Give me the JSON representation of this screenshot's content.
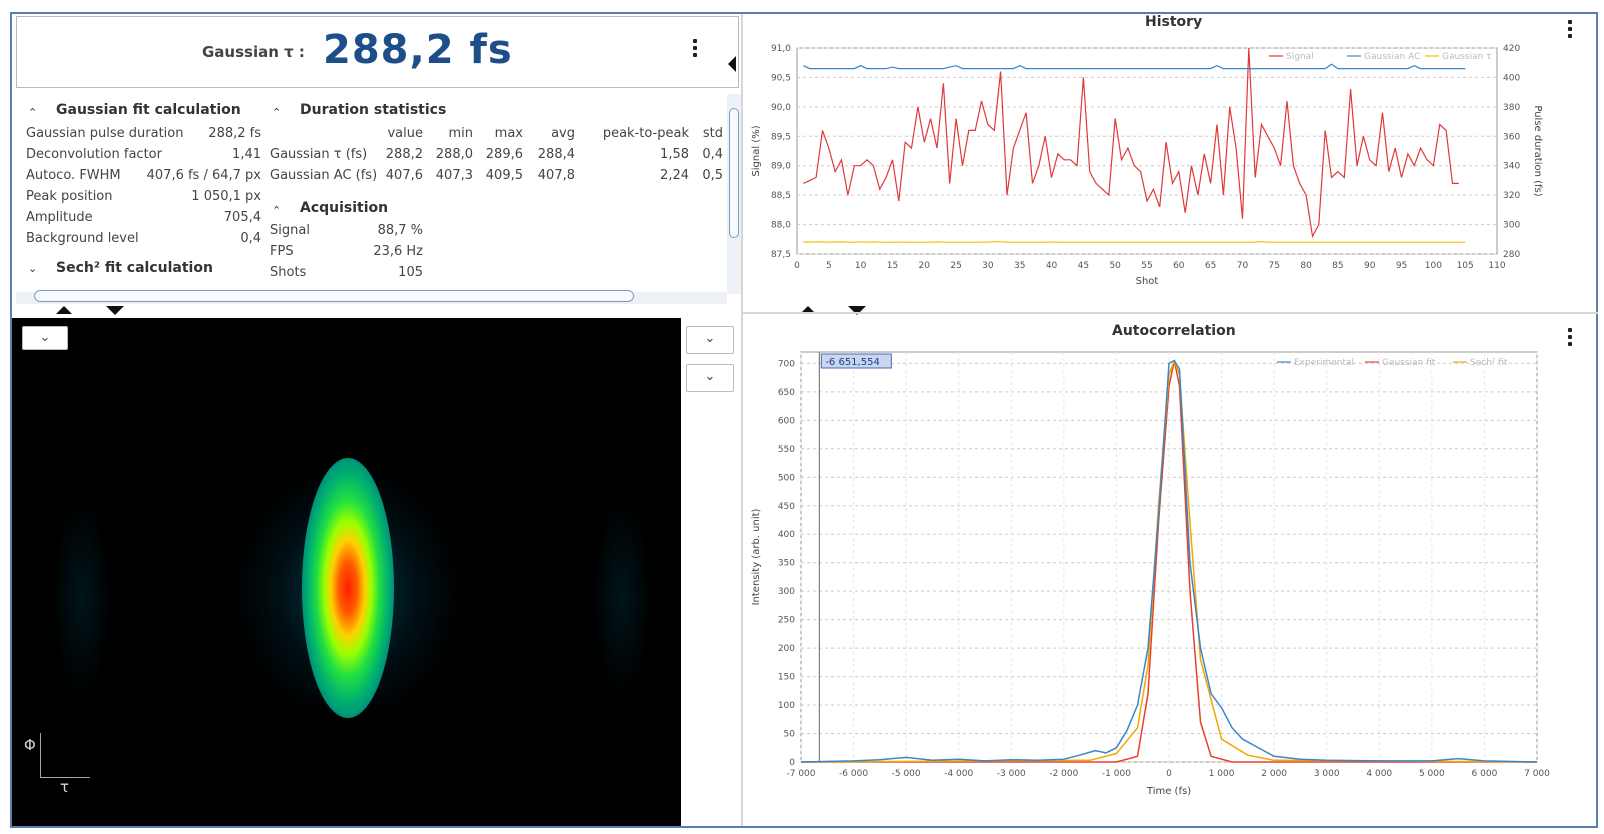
{
  "header": {
    "label": "Gaussian τ :",
    "value": "288,2 fs"
  },
  "gaussian_fit": {
    "title": "Gaussian fit calculation",
    "rows": [
      {
        "label": "Gaussian pulse duration",
        "value": "288,2 fs"
      },
      {
        "label": "Deconvolution factor",
        "value": "1,41"
      },
      {
        "label": "Autoco. FWHM",
        "value": "407,6 fs / 64,7 px"
      },
      {
        "label": "Peak position",
        "value": "1 050,1 px"
      },
      {
        "label": "Amplitude",
        "value": "705,4"
      },
      {
        "label": "Background level",
        "value": "0,4"
      }
    ]
  },
  "sech_fit": {
    "title": "Sech² fit calculation"
  },
  "duration_stats": {
    "title": "Duration statistics",
    "columns": [
      "value",
      "min",
      "max",
      "avg",
      "peak-to-peak",
      "std"
    ],
    "rows": [
      {
        "label": "Gaussian τ (fs)",
        "cells": [
          "288,2",
          "288,0",
          "289,6",
          "288,4",
          "1,58",
          "0,4"
        ]
      },
      {
        "label": "Gaussian AC (fs)",
        "cells": [
          "407,6",
          "407,3",
          "409,5",
          "407,8",
          "2,24",
          "0,5"
        ]
      }
    ]
  },
  "acquisition": {
    "title": "Acquisition",
    "rows": [
      {
        "label": "Signal",
        "value": "88,7 %"
      },
      {
        "label": "FPS",
        "value": "23,6 Hz"
      },
      {
        "label": "Shots",
        "value": "105"
      }
    ]
  },
  "image_view": {
    "axis_y": "Φ",
    "axis_x": "τ"
  },
  "icons": {
    "dropdown": "chevron-down-icon",
    "menu": "kebab-menu-icon"
  },
  "colors": {
    "accent": "#1d4e8a",
    "signal": "#e0383a",
    "gaussian_ac": "#3a86c8",
    "gaussian_tau": "#f2c200",
    "gaussian_fit": "#e8402a",
    "sech_fit": "#f0a800"
  },
  "chart_data": [
    {
      "type": "line",
      "title": "History",
      "xlabel": "Shot",
      "ylabel": "Signal (%)",
      "ylabel_right": "Pulse duration (fs)",
      "xlim": [
        0,
        110
      ],
      "ylim": [
        87.5,
        91.0
      ],
      "ylim_right": [
        280,
        420
      ],
      "x_ticks": [
        "0",
        "5",
        "10",
        "15",
        "20",
        "25",
        "30",
        "35",
        "40",
        "45",
        "50",
        "55",
        "60",
        "65",
        "70",
        "75",
        "80",
        "85",
        "90",
        "95",
        "100",
        "105",
        "110"
      ],
      "y_ticks": [
        "87,5",
        "88,0",
        "88,5",
        "89,0",
        "89,5",
        "90,0",
        "90,5",
        "91,0"
      ],
      "y_ticks_right": [
        "280",
        "300",
        "320",
        "340",
        "360",
        "380",
        "400",
        "420"
      ],
      "legend": [
        "Signal",
        "Gaussian AC",
        "Gaussian τ"
      ],
      "legend_position": "top-right",
      "grid": true,
      "series": [
        {
          "name": "Signal",
          "axis": "left",
          "x_start": 1,
          "values": [
            88.7,
            88.75,
            88.8,
            89.6,
            89.3,
            88.9,
            89.1,
            88.5,
            89.0,
            89.0,
            89.1,
            89.0,
            88.6,
            88.8,
            89.1,
            88.4,
            89.4,
            89.3,
            90.0,
            89.4,
            89.8,
            89.3,
            90.4,
            88.7,
            89.8,
            89.0,
            89.6,
            89.6,
            90.1,
            89.7,
            89.6,
            90.6,
            88.5,
            89.3,
            89.6,
            89.9,
            88.7,
            89.0,
            89.5,
            88.8,
            89.2,
            89.1,
            89.1,
            89.0,
            90.5,
            88.9,
            88.7,
            88.6,
            88.5,
            89.8,
            89.1,
            89.3,
            89.0,
            88.9,
            88.4,
            88.6,
            88.3,
            89.4,
            88.7,
            88.9,
            88.2,
            89.0,
            88.5,
            89.2,
            88.7,
            89.7,
            88.5,
            90.0,
            89.3,
            88.1,
            91.0,
            88.8,
            89.7,
            89.5,
            89.3,
            89.0,
            90.1,
            89.0,
            88.7,
            88.5,
            87.8,
            88.0,
            89.6,
            88.8,
            88.9,
            88.8,
            90.3,
            89.0,
            89.5,
            89.1,
            89.0,
            89.9,
            88.9,
            89.3,
            88.8,
            89.2,
            89.0,
            89.3,
            89.1,
            89.0,
            89.7,
            89.6,
            88.7,
            88.7
          ]
        },
        {
          "name": "Gaussian AC",
          "axis": "right",
          "x_start": 1,
          "values": [
            408,
            406,
            406,
            406,
            406,
            406,
            406,
            406,
            406,
            408,
            406,
            406,
            406,
            406,
            407,
            406,
            406,
            406,
            406,
            406,
            406,
            406,
            406,
            407,
            408,
            406,
            406,
            406,
            406,
            406,
            406,
            406,
            406,
            406,
            408,
            406,
            406,
            406,
            406,
            406,
            406,
            406,
            406,
            406,
            406,
            406,
            406,
            406,
            406,
            406,
            406,
            406,
            406,
            406,
            406,
            406,
            406,
            406,
            406,
            406,
            406,
            406,
            406,
            406,
            406,
            408,
            406,
            406,
            406,
            406,
            406,
            406,
            406,
            406,
            406,
            406,
            406,
            406,
            406,
            406,
            406,
            406,
            406,
            409,
            406,
            406,
            406,
            406,
            406,
            406,
            406,
            406,
            406,
            406,
            406,
            406,
            408,
            406,
            406,
            406,
            406,
            406,
            406,
            406,
            406
          ]
        },
        {
          "name": "Gaussian τ",
          "axis": "right",
          "x_start": 1,
          "values": [
            288.2,
            288,
            288.2,
            288.2,
            288,
            288.1,
            288.2,
            288,
            288,
            288.3,
            288,
            288.2,
            288,
            288,
            288,
            288.1,
            288,
            288,
            288,
            288,
            288,
            288.2,
            288,
            288,
            288,
            288,
            288,
            288,
            288.1,
            288,
            288.5,
            288.3,
            288,
            288,
            288,
            288,
            288,
            288,
            288,
            288.1,
            288,
            288,
            288,
            288,
            288,
            288,
            288,
            288,
            288,
            288,
            288,
            288,
            288,
            288,
            288,
            288,
            288,
            288,
            288,
            288,
            288,
            288,
            288,
            288,
            288,
            288,
            288,
            288,
            288,
            288,
            288,
            288,
            288.4,
            288,
            288,
            288,
            288,
            288,
            288,
            288,
            288,
            288,
            288,
            288,
            288,
            288,
            288,
            288,
            288,
            288,
            288,
            288,
            288,
            288,
            288,
            288,
            288,
            288,
            288,
            288,
            288,
            288,
            288,
            288,
            288
          ]
        }
      ]
    },
    {
      "type": "line",
      "title": "Autocorrelation",
      "xlabel": "Time (fs)",
      "ylabel": "Intensity (arb. unit)",
      "xlim": [
        -7000,
        7000
      ],
      "ylim": [
        0,
        720
      ],
      "x_ticks": [
        "-7 000",
        "-6 000",
        "-5 000",
        "-4 000",
        "-3 000",
        "-2 000",
        "-1 000",
        "0",
        "1 000",
        "2 000",
        "3 000",
        "4 000",
        "5 000",
        "6 000",
        "7 000"
      ],
      "y_ticks": [
        "0",
        "50",
        "100",
        "150",
        "200",
        "250",
        "300",
        "350",
        "400",
        "450",
        "500",
        "550",
        "600",
        "650",
        "700"
      ],
      "legend": [
        "Experimental",
        "Gaussian fit",
        "Sech² fit"
      ],
      "legend_position": "top-right",
      "cursor_readout": "-6 651,554",
      "cursor_x": -6651.554,
      "grid": true,
      "series": [
        {
          "name": "Experimental",
          "x": [
            -7000,
            -6000,
            -5500,
            -5000,
            -4500,
            -4000,
            -3500,
            -3000,
            -2500,
            -2000,
            -1700,
            -1400,
            -1200,
            -1000,
            -800,
            -600,
            -400,
            -200,
            0,
            100,
            200,
            400,
            600,
            800,
            1000,
            1200,
            1400,
            1600,
            1800,
            2000,
            2500,
            3000,
            4000,
            5000,
            5500,
            6000,
            7000
          ],
          "y": [
            0,
            2,
            4,
            8,
            3,
            5,
            2,
            4,
            3,
            5,
            12,
            20,
            16,
            25,
            55,
            100,
            200,
            430,
            700,
            705,
            690,
            350,
            200,
            120,
            95,
            60,
            40,
            30,
            20,
            10,
            5,
            3,
            2,
            2,
            6,
            2,
            0
          ]
        },
        {
          "name": "Gaussian fit",
          "x": [
            -7000,
            -1000,
            -600,
            -400,
            -200,
            0,
            100,
            200,
            400,
            600,
            800,
            1200,
            7000
          ],
          "y": [
            0,
            0,
            10,
            120,
            420,
            660,
            705,
            660,
            300,
            70,
            10,
            0,
            0
          ]
        },
        {
          "name": "Sech² fit",
          "x": [
            -7000,
            -1500,
            -1000,
            -600,
            -400,
            -200,
            0,
            100,
            200,
            400,
            600,
            1000,
            1500,
            2000,
            7000
          ],
          "y": [
            0,
            3,
            15,
            60,
            170,
            450,
            680,
            705,
            680,
            420,
            180,
            40,
            12,
            3,
            0
          ]
        }
      ]
    }
  ]
}
